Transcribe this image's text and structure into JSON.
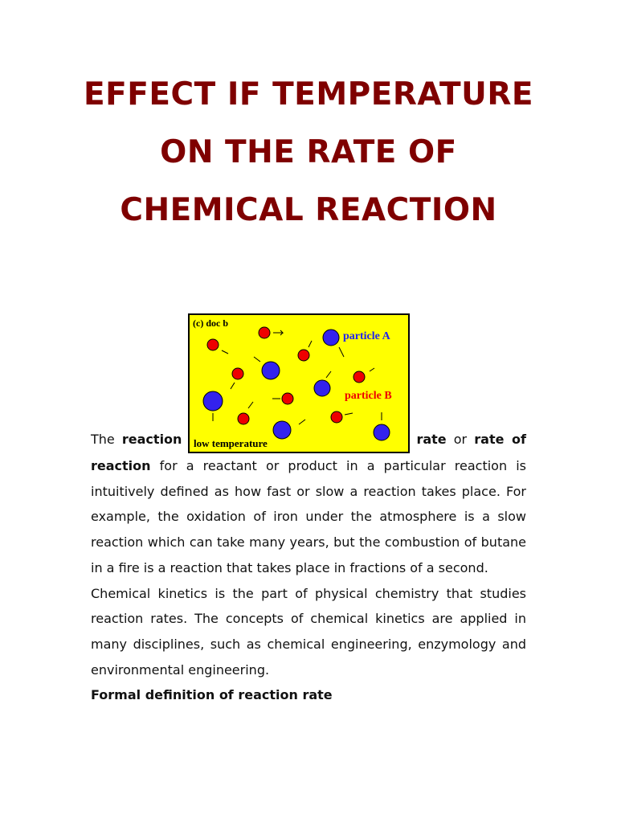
{
  "title": "EFFECT IF TEMPERATURE ON THE RATE OF CHEMICAL REACTION",
  "figure": {
    "caption_label": "(c) doc b",
    "particle_a": "particle A",
    "particle_b": "particle B",
    "condition": "low temperature"
  },
  "paragraphs": [
    {
      "runs": [
        {
          "text": "The ",
          "bold": false
        },
        {
          "text": "reaction",
          "bold": true
        },
        {
          "text": "rate",
          "bold": true
        },
        {
          "text": " or ",
          "bold": false
        },
        {
          "text": "rate of reaction",
          "bold": true
        },
        {
          "text": " for a reactant or product in a particular reaction is intuitively defined as how fast or slow a reaction takes place. For example, the oxidation of iron under the atmosphere is a slow reaction which can take many years, but the combustion of butane in a fire is a reaction that takes place in fractions of a second.",
          "bold": false
        }
      ]
    },
    {
      "runs": [
        {
          "text": "Chemical kinetics is the part of physical chemistry that studies reaction rates. The concepts of chemical kinetics are applied in many disciplines, such as chemical engineering, enzymology and environmental engineering.",
          "bold": false
        }
      ]
    }
  ],
  "heading": "Formal definition of reaction rate"
}
